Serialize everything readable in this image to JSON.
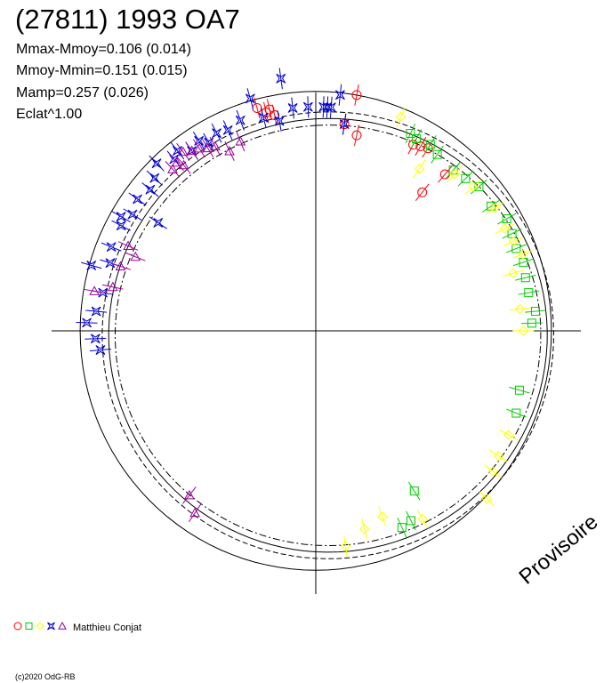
{
  "title": "(27811) 1993 OA7",
  "stats": [
    "Mmax-Mmoy=0.106 (0.014)",
    "Mmoy-Mmin=0.151 (0.015)",
    "Mamp=0.257 (0.026)",
    "Eclat^1.00"
  ],
  "legend": {
    "author": "Matthieu Conjat",
    "symbols": [
      {
        "shape": "circle",
        "color": "#ff0000"
      },
      {
        "shape": "square",
        "color": "#00cc00"
      },
      {
        "shape": "diamond",
        "color": "#ffff00"
      },
      {
        "shape": "star",
        "color": "#0000cc"
      },
      {
        "shape": "triangle",
        "color": "#990099"
      }
    ]
  },
  "watermark": "Provisoire",
  "copyright": "(c)2020 OdG-RB",
  "chart_data": {
    "type": "scatter",
    "coordinate_system": "polar",
    "angle_unit": "degrees, clockwise from top (rotation phase 0-1 mapped to 0-360)",
    "value_unit": "relative brightness (mean radius = 1.0)",
    "reference_curves": [
      {
        "name": "fit",
        "style": "solid",
        "mean_radius": 1.0,
        "amplitude": 0.12
      },
      {
        "name": "fit-upper",
        "style": "dashed",
        "mean_radius": 1.03,
        "amplitude": 0.12
      },
      {
        "name": "fit-lower",
        "style": "dashdot",
        "mean_radius": 0.97,
        "amplitude": 0.12
      },
      {
        "name": "unit-circle",
        "style": "solid",
        "mean_radius": 1.09,
        "amplitude": 0.0
      }
    ],
    "series": [
      {
        "symbol": "circle",
        "color": "#ff0000",
        "points": [
          [
            -15,
            1.05
          ],
          [
            -13,
            1.02
          ],
          [
            -12,
            1.03
          ],
          [
            -11,
            1.0
          ],
          [
            10,
            1.09
          ],
          [
            8,
            0.95
          ],
          [
            12,
            0.91
          ],
          [
            28,
            0.96
          ],
          [
            30,
            0.97
          ],
          [
            32,
            0.98
          ],
          [
            38,
            0.8
          ],
          [
            40,
            0.93
          ]
        ]
      },
      {
        "symbol": "square",
        "color": "#00cc00",
        "points": [
          [
            26,
            1.0
          ],
          [
            28,
            0.99
          ],
          [
            32,
            1.0
          ],
          [
            35,
            0.98
          ],
          [
            41,
            0.97
          ],
          [
            45,
            0.98
          ],
          [
            49,
            1.0
          ],
          [
            55,
            0.99
          ],
          [
            60,
            1.02
          ],
          [
            64,
            1.01
          ],
          [
            68,
            1.0
          ],
          [
            72,
            1.01
          ],
          [
            76,
            1.0
          ],
          [
            80,
            1.0
          ],
          [
            85,
            1.02
          ],
          [
            88,
            1.0
          ],
          [
            106,
            0.98
          ],
          [
            112,
            1.0
          ],
          [
            148,
            0.86
          ],
          [
            153,
            0.97
          ],
          [
            156,
            0.98
          ]
        ]
      },
      {
        "symbol": "diamond",
        "color": "#ffff00",
        "points": [
          [
            22,
            1.05
          ],
          [
            33,
            0.88
          ],
          [
            42,
            0.96
          ],
          [
            48,
            0.98
          ],
          [
            56,
            1.0
          ],
          [
            62,
            0.99
          ],
          [
            66,
            1.0
          ],
          [
            70,
            1.02
          ],
          [
            74,
            0.95
          ],
          [
            84,
            0.95
          ],
          [
            90,
            0.96
          ],
          [
            118,
            1.01
          ],
          [
            124,
            1.02
          ],
          [
            128,
            1.04
          ],
          [
            134,
            1.1
          ],
          [
            150,
            0.99
          ],
          [
            160,
            0.9
          ],
          [
            166,
            0.93
          ],
          [
            172,
            0.99
          ]
        ]
      },
      {
        "symbol": "star",
        "color": "#0000cc",
        "points": [
          [
            -95,
            1.0
          ],
          [
            -92,
            1.02
          ],
          [
            -88,
            1.06
          ],
          [
            -85,
            1.02
          ],
          [
            -80,
            1.0
          ],
          [
            -74,
            1.08
          ],
          [
            -72,
            1.0
          ],
          [
            -68,
            1.02
          ],
          [
            -62,
            1.02
          ],
          [
            -58,
            1.0
          ],
          [
            -54,
            1.02
          ],
          [
            -50,
            1.0
          ],
          [
            -47,
            1.02
          ],
          [
            -44,
            1.06
          ],
          [
            -40,
            1.02
          ],
          [
            -38,
            1.04
          ],
          [
            -35,
            1.0
          ],
          [
            -32,
            1.02
          ],
          [
            -30,
            0.99
          ],
          [
            -27,
            1.01
          ],
          [
            -24,
            1.0
          ],
          [
            -20,
            1.02
          ],
          [
            -16,
            1.1
          ],
          [
            -14,
            1.0
          ],
          [
            -10,
            0.97
          ],
          [
            -6,
            1.02
          ],
          [
            -2,
            1.02
          ],
          [
            2,
            1.02
          ],
          [
            4,
            1.02
          ],
          [
            6,
            1.08
          ],
          [
            8,
            0.95
          ],
          [
            -56,
            0.88
          ],
          [
            -60,
            1.04
          ],
          [
            -8,
            1.16
          ],
          [
            3,
            1.02
          ]
        ]
      },
      {
        "symbol": "triangle",
        "color": "#990099",
        "points": [
          [
            -42,
            0.99
          ],
          [
            -40,
            1.0
          ],
          [
            -39,
            0.97
          ],
          [
            -37,
            1.02
          ],
          [
            -35,
            1.0
          ],
          [
            -33,
            0.99
          ],
          [
            -31,
            0.97
          ],
          [
            -29,
            0.96
          ],
          [
            -26,
            0.91
          ],
          [
            -22,
            0.93
          ],
          [
            -66,
            0.95
          ],
          [
            -68,
            0.9
          ],
          [
            -72,
            0.95
          ],
          [
            -78,
            0.96
          ],
          [
            -80,
            1.04
          ],
          [
            -142,
            0.95
          ],
          [
            -146,
            1.0
          ]
        ]
      }
    ]
  }
}
